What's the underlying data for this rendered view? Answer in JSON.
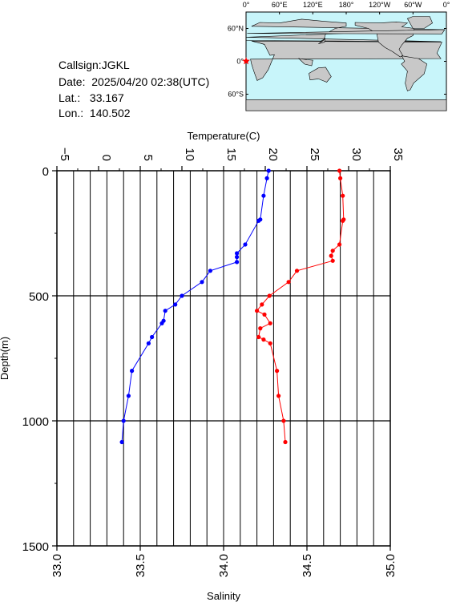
{
  "header": {
    "callsign": "Callsign:JGKL",
    "date": "Date:  2025/04/20 02:38(UTC)",
    "lat": "Lat.:   33.167",
    "lon": "Lon.:  140.502"
  },
  "map": {
    "top_labels": [
      "0°",
      "60°E",
      "120°E",
      "180°",
      "120°W",
      "60°W",
      "0°"
    ],
    "lat_labels": [
      "60°N",
      "0°",
      "60°S"
    ],
    "ocean_color": "#c8f5fa",
    "land_color": "#c8c8c8",
    "marker_color": "#ff0000",
    "marker_icon": "star-icon"
  },
  "chart_data": {
    "type": "line",
    "ylabel": "Depth(m)",
    "ylim": [
      1500,
      0
    ],
    "y_ticks": [
      "0",
      "500",
      "1000",
      "1500"
    ],
    "grid": true,
    "top_axis": {
      "label": "Temperature(C)",
      "lim": [
        -5,
        35
      ],
      "ticks": [
        "−5",
        "0",
        "5",
        "10",
        "15",
        "20",
        "25",
        "30",
        "35"
      ]
    },
    "bottom_axis": {
      "label": "Salinity",
      "lim": [
        33.0,
        35.0
      ],
      "ticks": [
        "33.0",
        "33.5",
        "34.0",
        "34.5",
        "35.0"
      ]
    },
    "series": [
      {
        "axis": "temperature",
        "color": "#ff0000",
        "points": [
          [
            28.9,
            0
          ],
          [
            29.0,
            30
          ],
          [
            29.3,
            100
          ],
          [
            29.4,
            195
          ],
          [
            29.3,
            200
          ],
          [
            28.9,
            295
          ],
          [
            28.1,
            320
          ],
          [
            27.9,
            340
          ],
          [
            28.1,
            360
          ],
          [
            23.8,
            400
          ],
          [
            22.8,
            445
          ],
          [
            20.5,
            500
          ],
          [
            19.6,
            535
          ],
          [
            19.0,
            560
          ],
          [
            19.9,
            575
          ],
          [
            20.6,
            610
          ],
          [
            19.4,
            630
          ],
          [
            19.2,
            665
          ],
          [
            19.8,
            675
          ],
          [
            20.6,
            690
          ],
          [
            21.4,
            800
          ],
          [
            21.6,
            900
          ],
          [
            22.2,
            1000
          ],
          [
            22.4,
            1085
          ]
        ]
      },
      {
        "axis": "salinity",
        "color": "#0000ff",
        "points": [
          [
            34.27,
            0
          ],
          [
            34.26,
            30
          ],
          [
            34.24,
            100
          ],
          [
            34.22,
            195
          ],
          [
            34.21,
            200
          ],
          [
            34.13,
            295
          ],
          [
            34.08,
            330
          ],
          [
            34.08,
            345
          ],
          [
            34.08,
            365
          ],
          [
            33.92,
            400
          ],
          [
            33.87,
            445
          ],
          [
            33.75,
            500
          ],
          [
            33.71,
            535
          ],
          [
            33.65,
            560
          ],
          [
            33.64,
            600
          ],
          [
            33.63,
            610
          ],
          [
            33.57,
            665
          ],
          [
            33.55,
            690
          ],
          [
            33.45,
            800
          ],
          [
            33.43,
            900
          ],
          [
            33.4,
            1000
          ],
          [
            33.39,
            1085
          ]
        ]
      }
    ]
  }
}
